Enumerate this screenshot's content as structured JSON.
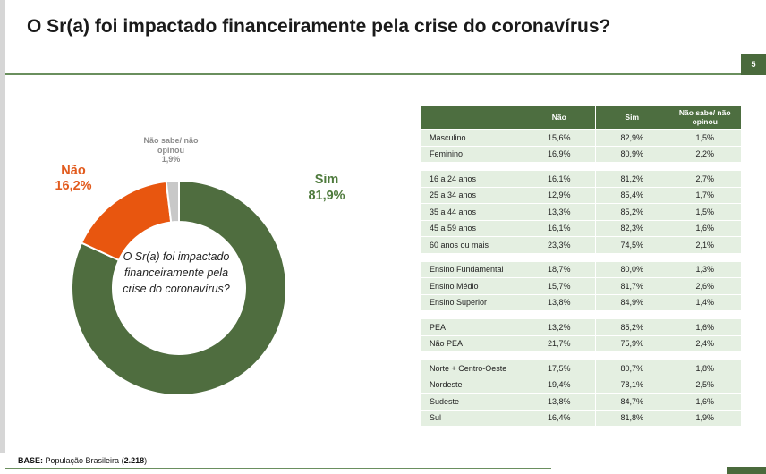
{
  "title": "O Sr(a) foi impactado financeiramente pela crise do coronavírus?",
  "page_number": "5",
  "footer": {
    "base_label": "BASE:",
    "base_text": " População Brasileira (",
    "base_count": "2.218",
    "base_close": ")"
  },
  "chart_data": {
    "type": "pie",
    "variant": "donut",
    "center_text": "O Sr(a) foi impactado financeiramente pela crise do coronavírus?",
    "slices": [
      {
        "label": "Sim",
        "value": 81.9,
        "display": "81,9%",
        "color": "#4f6d3f"
      },
      {
        "label": "Não",
        "value": 16.2,
        "display": "16,2%",
        "color": "#e8560f"
      },
      {
        "label": "Não sabe/ não opinou",
        "value": 1.9,
        "display": "1,9%",
        "color": "#c8c8c8"
      }
    ]
  },
  "table": {
    "headers": [
      "",
      "Não",
      "Sim",
      "Não sabe/ não opinou"
    ],
    "groups": [
      [
        [
          "Masculino",
          "15,6%",
          "82,9%",
          "1,5%"
        ],
        [
          "Feminino",
          "16,9%",
          "80,9%",
          "2,2%"
        ]
      ],
      [
        [
          "16 a 24 anos",
          "16,1%",
          "81,2%",
          "2,7%"
        ],
        [
          "25 a 34 anos",
          "12,9%",
          "85,4%",
          "1,7%"
        ],
        [
          "35 a 44 anos",
          "13,3%",
          "85,2%",
          "1,5%"
        ],
        [
          "45 a 59 anos",
          "16,1%",
          "82,3%",
          "1,6%"
        ],
        [
          "60 anos ou mais",
          "23,3%",
          "74,5%",
          "2,1%"
        ]
      ],
      [
        [
          "Ensino Fundamental",
          "18,7%",
          "80,0%",
          "1,3%"
        ],
        [
          "Ensino Médio",
          "15,7%",
          "81,7%",
          "2,6%"
        ],
        [
          "Ensino Superior",
          "13,8%",
          "84,9%",
          "1,4%"
        ]
      ],
      [
        [
          "PEA",
          "13,2%",
          "85,2%",
          "1,6%"
        ],
        [
          "Não PEA",
          "21,7%",
          "75,9%",
          "2,4%"
        ]
      ],
      [
        [
          "Norte + Centro-Oeste",
          "17,5%",
          "80,7%",
          "1,8%"
        ],
        [
          "Nordeste",
          "19,4%",
          "78,1%",
          "2,5%"
        ],
        [
          "Sudeste",
          "13,8%",
          "84,7%",
          "1,6%"
        ],
        [
          "Sul",
          "16,4%",
          "81,8%",
          "1,9%"
        ]
      ]
    ]
  }
}
